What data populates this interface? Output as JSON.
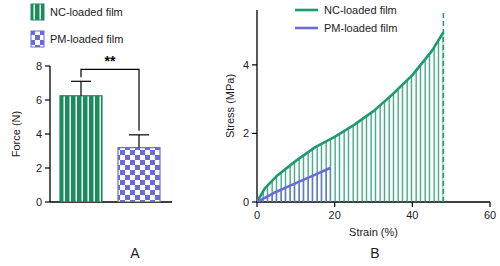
{
  "chart_data": [
    {
      "type": "bar",
      "title": "A",
      "y_label": "Force (N)",
      "categories": [
        null
      ],
      "series": [
        {
          "name": "NC-loaded film",
          "color": "#1f8a5c",
          "values": [
            6.25
          ],
          "errors": [
            0.85
          ]
        },
        {
          "name": "PM-loaded film",
          "color": "#6b6bd8",
          "values": [
            3.2
          ],
          "errors": [
            0.75
          ]
        }
      ],
      "ylim": [
        0,
        8
      ],
      "yticks": [
        0,
        2,
        4,
        6,
        8
      ],
      "annotations": [
        "**"
      ],
      "tick_labels": "y",
      "legend": "top-left",
      "grid": false
    },
    {
      "type": "line",
      "title": "B",
      "x_label": "Strain (%)",
      "y_label": "Stress (MPa)",
      "series": [
        {
          "name": "NC-loaded film",
          "color": "#1f9a6c",
          "x": [
            0,
            2,
            5,
            10,
            15,
            20,
            25,
            30,
            35,
            40,
            45,
            48
          ],
          "values": [
            0,
            0.4,
            0.75,
            1.2,
            1.6,
            1.9,
            2.25,
            2.65,
            3.15,
            3.7,
            4.4,
            4.95
          ]
        },
        {
          "name": "PM-loaded film",
          "color": "#6b6bd8",
          "x": [
            0,
            5,
            10,
            15,
            19
          ],
          "values": [
            0,
            0.3,
            0.55,
            0.8,
            1.0
          ]
        }
      ],
      "xlim": [
        0,
        60
      ],
      "xticks": [
        0,
        20,
        40,
        60
      ],
      "ylim": [
        0,
        5.6
      ],
      "yticks": [
        0,
        2,
        4
      ],
      "legend": "top",
      "grid": false
    }
  ]
}
